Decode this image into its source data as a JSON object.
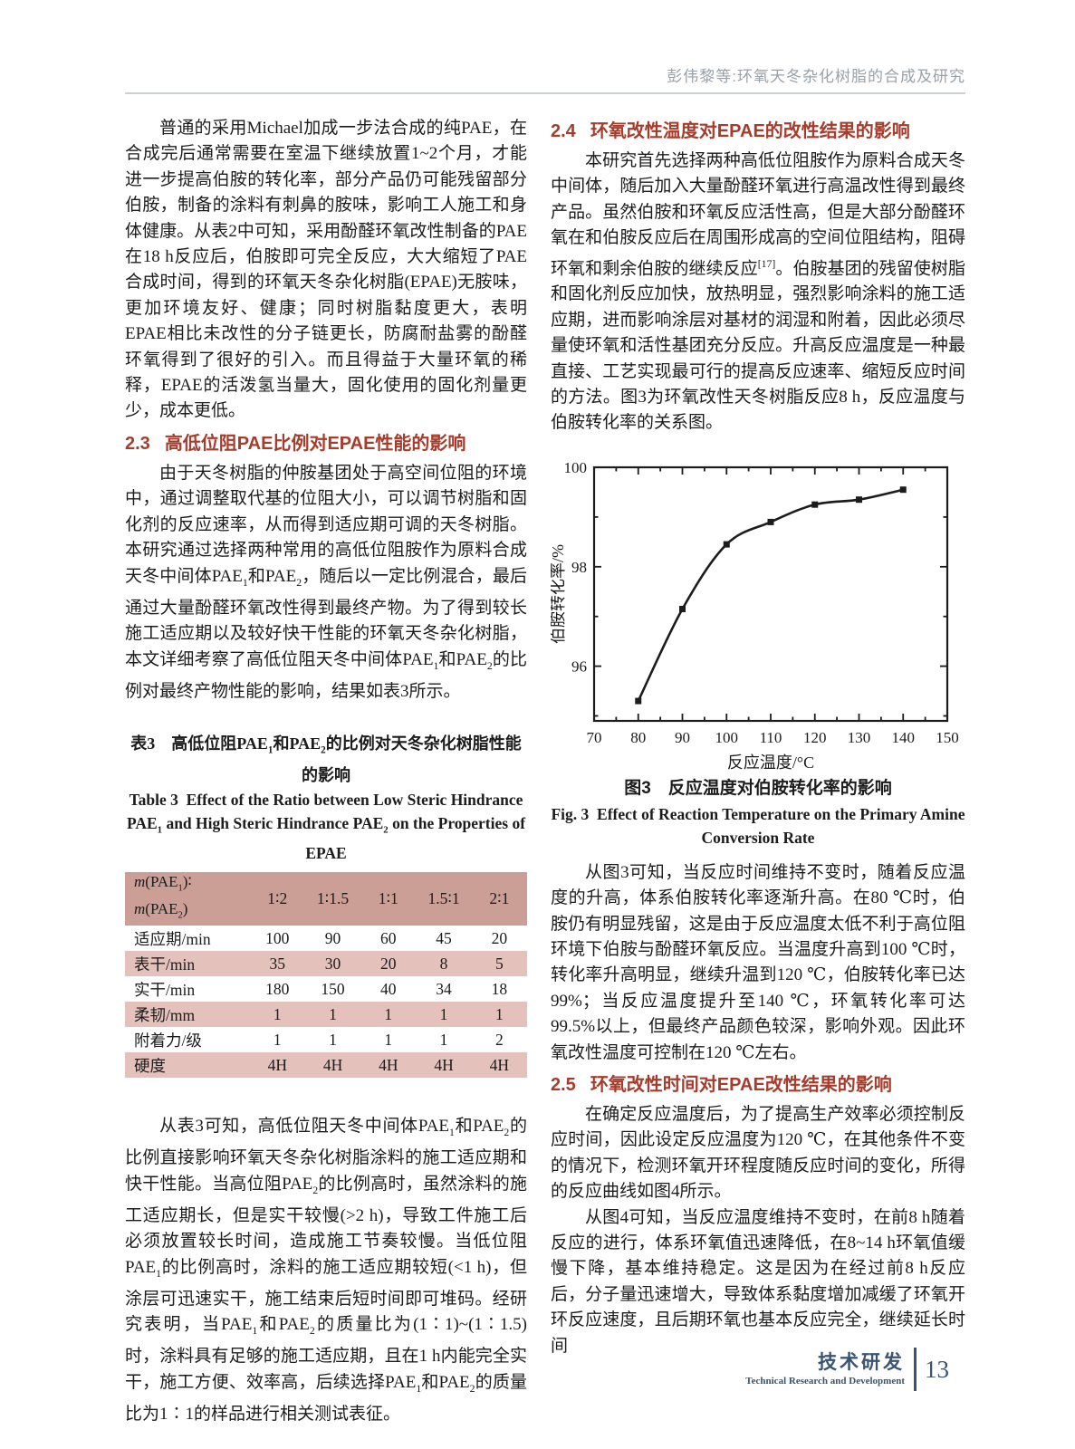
{
  "page_header": {
    "running_title": "彭伟黎等:环氧天冬杂化树脂的合成及研究"
  },
  "left": {
    "para_intro": "普通的采用Michael加成一步法合成的纯PAE，在合成完后通常需要在室温下继续放置1~2个月，才能进一步提高伯胺的转化率，部分产品仍可能残留部分伯胺，制备的涂料有刺鼻的胺味，影响工人施工和身体健康。从表2中可知，采用酚醛环氧改性制备的PAE在18 h反应后，伯胺即可完全反应，大大缩短了PAE合成时间，得到的环氧天冬杂化树脂(EPAE)无胺味，更加环境友好、健康；同时树脂黏度更大，表明EPAE相比未改性的分子链更长，防腐耐盐雾的酚醛环氧得到了很好的引入。而且得益于大量环氧的稀释，EPAE的活泼氢当量大，固化使用的固化剂量更少，成本更低。",
    "sec23": {
      "num": "2.3",
      "title": "高低位阻PAE比例对EPAE性能的影响"
    },
    "para_23_html": "由于天冬树脂的仲胺基团处于高空间位阻的环境中，通过调整取代基的位阻大小，可以调节树脂和固化剂的反应速率，从而得到适应期可调的天冬树脂。本研究通过选择两种常用的高低位阻胺作为原料合成天冬中间体PAE<sub>1</sub>和PAE<sub>2</sub>，随后以一定比例混合，最后通过大量酚醛环氧改性得到最终产物。为了得到较长施工适应期以及较好快干性能的环氧天冬杂化树脂，本文详细考察了高低位阻天冬中间体PAE<sub>1</sub>和PAE<sub>2</sub>的比例对最终产物性能的影响，结果如表3所示。",
    "para_table_discussion_html": "从表3可知，高低位阻天冬中间体PAE<sub>1</sub>和PAE<sub>2</sub>的比例直接影响环氧天冬杂化树脂涂料的施工适应期和快干性能。当高位阻PAE<sub>2</sub>的比例高时，虽然涂料的施工适应期长，但是实干较慢(&gt;2 h)，导致工件施工后必须放置较长时间，造成施工节奏较慢。当低位阻PAE<sub>1</sub>的比例高时，涂料的施工适应期较短(&lt;1 h)，但涂层可迅速实干，施工结束后短时间即可堆码。经研究表明，当PAE<sub>1</sub>和PAE<sub>2</sub>的质量比为(1∶1)~(1∶1.5)时，涂料具有足够的施工适应期，且在1 h内能完全实干，施工方便、效率高，后续选择PAE<sub>1</sub>和PAE<sub>2</sub>的质量比为1∶1的样品进行相关测试表征。"
  },
  "table3": {
    "caption_cn_html": "表3　高低位阻PAE<sub>1</sub>和PAE<sub>2</sub>的比例对天冬杂化树脂性能的影响",
    "caption_en_html": "Table 3&nbsp;&nbsp;Effect of the Ratio between Low Steric Hindrance PAE<sub>1</sub> and High Steric Hindrance PAE<sub>2</sub> on the Properties of EPAE",
    "header_label_html": "<i>m</i>(PAE<sub>1</sub>)∶<br><i>m</i>(PAE<sub>2</sub>)",
    "ratio_columns": [
      "1∶2",
      "1∶1.5",
      "1∶1",
      "1.5∶1",
      "2∶1"
    ],
    "rows": [
      {
        "label": "适应期/min",
        "values": [
          "100",
          "90",
          "60",
          "45",
          "20"
        ]
      },
      {
        "label": "表干/min",
        "values": [
          "35",
          "30",
          "20",
          "8",
          "5"
        ]
      },
      {
        "label": "实干/min",
        "values": [
          "180",
          "150",
          "40",
          "34",
          "18"
        ]
      },
      {
        "label": "柔韧/mm",
        "values": [
          "1",
          "1",
          "1",
          "1",
          "1"
        ]
      },
      {
        "label": "附着力/级",
        "values": [
          "1",
          "1",
          "1",
          "1",
          "2"
        ]
      },
      {
        "label": "硬度",
        "values": [
          "4H",
          "4H",
          "4H",
          "4H",
          "4H"
        ]
      }
    ]
  },
  "right": {
    "sec24": {
      "num": "2.4",
      "title": "环氧改性温度对EPAE的改性结果的影响"
    },
    "para_24_html": "本研究首先选择两种高低位阻胺作为原料合成天冬中间体，随后加入大量酚醛环氧进行高温改性得到最终产品。虽然伯胺和环氧反应活性高，但是大部分酚醛环氧在和伯胺反应后在周围形成高的空间位阻结构，阻碍环氧和剩余伯胺的继续反应<sup>[17]</sup>。伯胺基团的残留使树脂和固化剂反应加快，放热明显，强烈影响涂料的施工适应期，进而影响涂层对基材的润湿和附着，因此必须尽量使环氧和活性基团充分反应。升高反应温度是一种最直接、工艺实现最可行的提高反应速率、缩短反应时间的方法。图3为环氧改性天冬树脂反应8 h，反应温度与伯胺转化率的关系图。",
    "fig3": {
      "caption_cn": "图3　反应温度对伯胺转化率的影响",
      "caption_en_html": "Fig. 3&nbsp;&nbsp;Effect of Reaction Temperature on the Primary Amine Conversion Rate"
    },
    "para_fig3": "从图3可知，当反应时间维持不变时，随着反应温度的升高，体系伯胺转化率逐渐升高。在80 ℃时，伯胺仍有明显残留，这是由于反应温度太低不利于高位阻环境下伯胺与酚醛环氧反应。当温度升高到100 ℃时，转化率升高明显，继续升温到120 ℃，伯胺转化率已达99%；当反应温度提升至140 ℃，环氧转化率可达99.5%以上，但最终产品颜色较深，影响外观。因此环氧改性温度可控制在120 ℃左右。",
    "sec25": {
      "num": "2.5",
      "title": "环氧改性时间对EPAE改性结果的影响"
    },
    "para_25a": "在确定反应温度后，为了提高生产效率必须控制反应时间，因此设定反应温度为120 ℃，在其他条件不变的情况下，检测环氧开环程度随反应时间的变化，所得的反应曲线如图4所示。",
    "para_25b": "从图4可知，当反应温度维持不变时，在前8 h随着反应的进行，体系环氧值迅速降低，在8~14 h环氧值缓慢下降，基本维持稳定。这是因为在经过前8 h反应后，分子量迅速增大，导致体系黏度增加减缓了环氧开环反应速度，且后期环氧也基本反应完全，继续延长时间"
  },
  "chart_data": {
    "type": "line",
    "title": "",
    "x": [
      80,
      90,
      100,
      110,
      120,
      130,
      140
    ],
    "y": [
      95.3,
      97.15,
      98.45,
      98.9,
      99.25,
      99.35,
      99.55
    ],
    "xlabel": "反应温度/°C",
    "ylabel": "伯胺转化率/%",
    "xlim": [
      70,
      150
    ],
    "ylim": [
      94.9,
      100
    ],
    "xticks": [
      70,
      80,
      90,
      100,
      110,
      120,
      130,
      140,
      150
    ],
    "xminor": [
      75,
      85,
      95,
      105,
      115,
      125,
      135,
      145
    ],
    "yticks": [
      96,
      98,
      100
    ],
    "yminor": [
      95,
      97,
      99
    ],
    "marker": "square",
    "line_color": "#1c1c1c",
    "grid": false,
    "legend": "none"
  },
  "footer": {
    "section_cn": "技术研发",
    "section_en": "Technical Research and Development",
    "page_number": "13"
  },
  "colors": {
    "accent_heading_red": "#a63c2c",
    "table_header_pink": "#cb9e96",
    "table_stripe_pink": "#e4c2bb",
    "footer_blue": "#3b5474",
    "running_head_gray": "#99a1a8"
  }
}
